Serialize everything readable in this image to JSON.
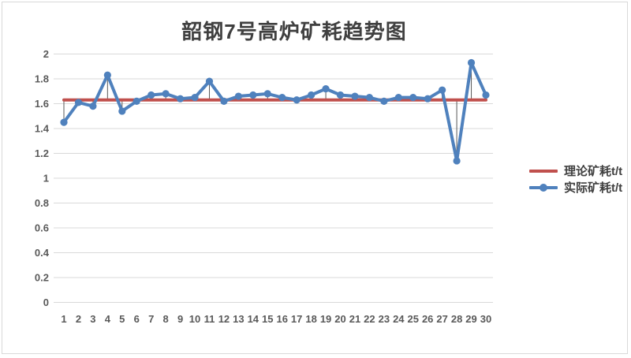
{
  "chart_data": {
    "type": "line",
    "title": "韶钢7号高炉矿耗趋势图",
    "categories": [
      "1",
      "2",
      "3",
      "4",
      "5",
      "6",
      "7",
      "8",
      "9",
      "10",
      "11",
      "12",
      "13",
      "14",
      "15",
      "16",
      "17",
      "18",
      "19",
      "20",
      "21",
      "22",
      "23",
      "24",
      "25",
      "26",
      "27",
      "28",
      "29",
      "30"
    ],
    "series": [
      {
        "name": "理论矿耗t/t",
        "type": "constant-line",
        "constant_value": 1.63,
        "color": "#c0504d"
      },
      {
        "name": "实际矿耗t/t",
        "type": "line-with-markers",
        "color": "#4f81bd",
        "values": [
          1.45,
          1.61,
          1.58,
          1.83,
          1.54,
          1.62,
          1.67,
          1.68,
          1.64,
          1.65,
          1.78,
          1.62,
          1.66,
          1.67,
          1.68,
          1.65,
          1.63,
          1.67,
          1.72,
          1.67,
          1.66,
          1.65,
          1.62,
          1.65,
          1.65,
          1.64,
          1.71,
          1.14,
          1.93,
          1.67
        ]
      }
    ],
    "xlabel": "",
    "ylabel": "",
    "ylim": [
      0,
      2
    ],
    "ytick_step": 0.2,
    "y_ticks": [
      "2",
      "1.8",
      "1.6",
      "1.4",
      "1.2",
      "1",
      "0.8",
      "0.6",
      "0.4",
      "0.2",
      "0"
    ],
    "grid": true,
    "high_low_lines": true,
    "legend_position": "right",
    "colors": {
      "gridline": "#d9d9d9",
      "high_low_line": "#595959",
      "axis_text": "#595959",
      "title_text": "#404040",
      "legend_text": "#3f3f3f",
      "frame_border": "#d9d9d9",
      "background": "#ffffff"
    }
  }
}
